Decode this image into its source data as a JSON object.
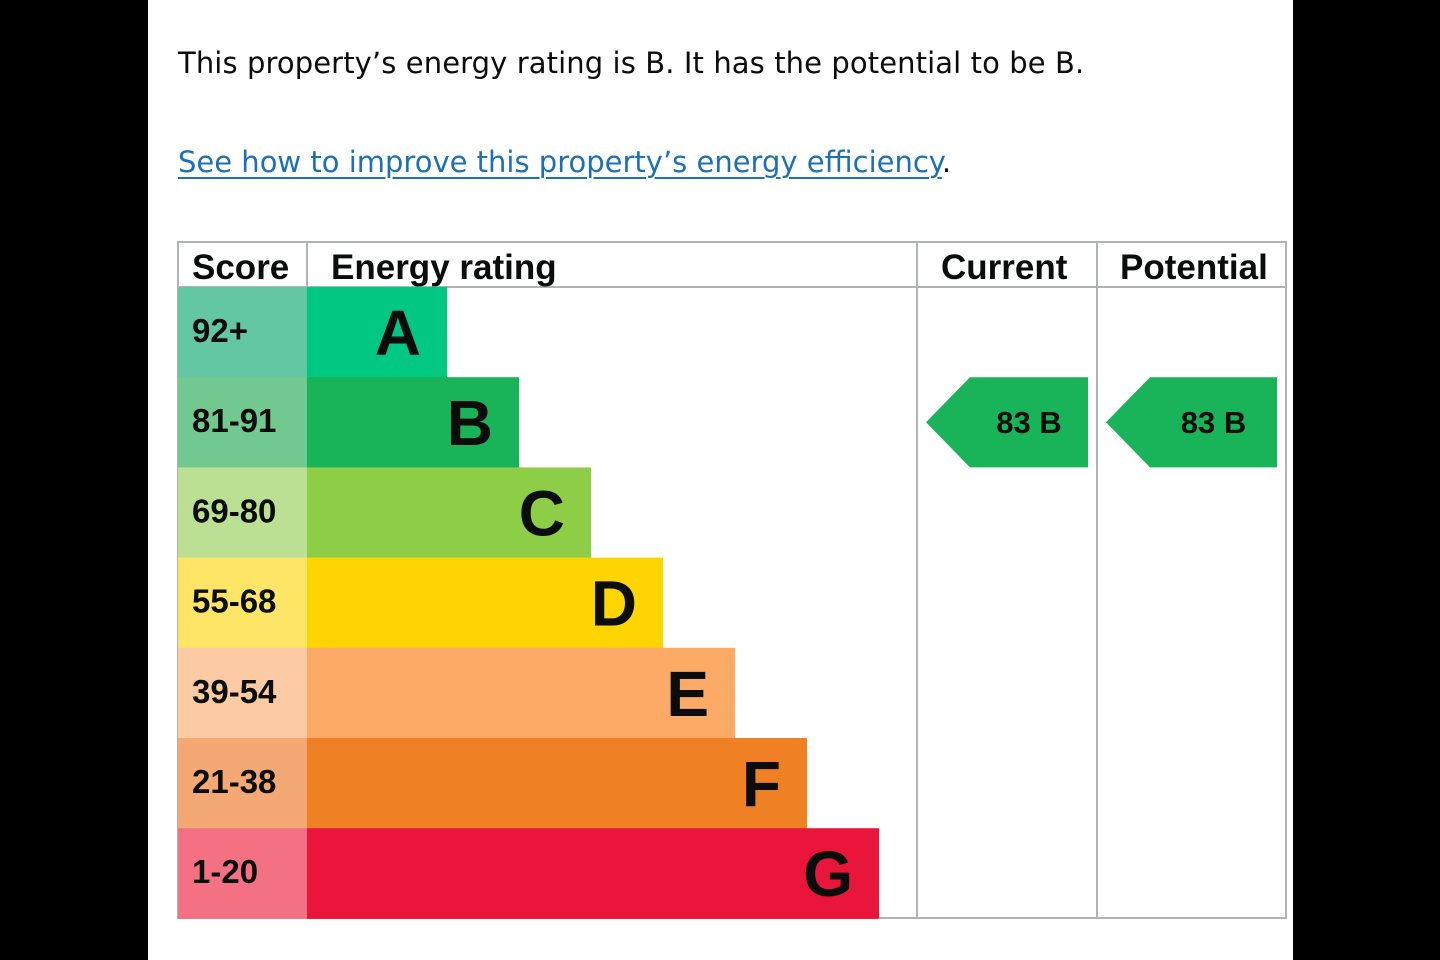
{
  "summary": "This property’s energy rating is B. It has the potential to be B.",
  "improve_link": "See how to improve this property’s energy efficiency",
  "improve_suffix": ".",
  "chart_data": {
    "type": "table",
    "columns": [
      "Score",
      "Energy rating",
      "Current",
      "Potential"
    ],
    "bands": [
      {
        "score": "92+",
        "letter": "A",
        "color": "#00c781",
        "score_bg": "#64c7a4"
      },
      {
        "score": "81-91",
        "letter": "B",
        "color": "#19b459",
        "score_bg": "#72c98f"
      },
      {
        "score": "69-80",
        "letter": "C",
        "color": "#8dce46",
        "score_bg": "#bbe093"
      },
      {
        "score": "55-68",
        "letter": "D",
        "color": "#ffd500",
        "score_bg": "#fee566"
      },
      {
        "score": "39-54",
        "letter": "E",
        "color": "#fcaa65",
        "score_bg": "#fccaa3"
      },
      {
        "score": "21-38",
        "letter": "F",
        "color": "#ef8023",
        "score_bg": "#f4a873"
      },
      {
        "score": "1-20",
        "letter": "G",
        "color": "#e9153b",
        "score_bg": "#f47183"
      }
    ],
    "current": {
      "value": 83,
      "letter": "B",
      "label": "83  B",
      "color": "#19b459"
    },
    "potential": {
      "value": 83,
      "letter": "B",
      "label": "83  B",
      "color": "#19b459"
    }
  }
}
